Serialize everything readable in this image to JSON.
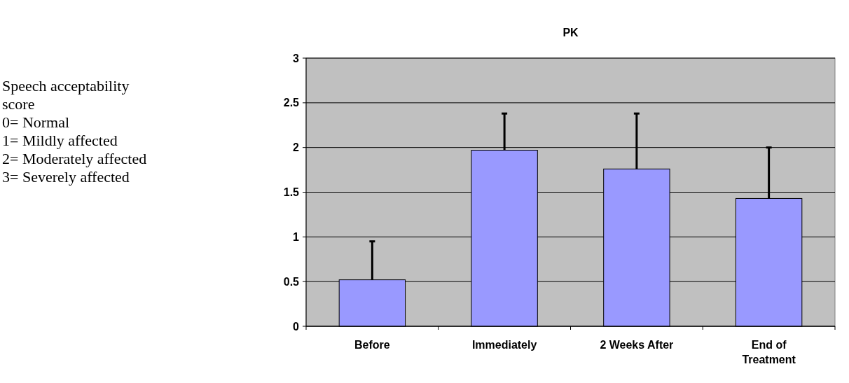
{
  "chart_data": {
    "type": "bar",
    "title": "PK",
    "categories": [
      "Before",
      "Immediately",
      "2 Weeks After",
      "End of Treatment"
    ],
    "values": [
      0.52,
      1.97,
      1.76,
      1.43
    ],
    "errors": [
      [
        0.52,
        0.95
      ],
      [
        1.97,
        2.38
      ],
      [
        1.76,
        2.38
      ],
      [
        1.43,
        2.0
      ]
    ],
    "color": "#9999ff",
    "ylim": [
      0,
      3
    ],
    "yticks": [
      0,
      0.5,
      1,
      1.5,
      2,
      2.5,
      3
    ],
    "grid": "y",
    "annotations": [
      "Speech acceptability score",
      "0= Normal",
      "1= Mildly affected",
      "2= Moderately affected",
      "3= Severely affected"
    ]
  }
}
